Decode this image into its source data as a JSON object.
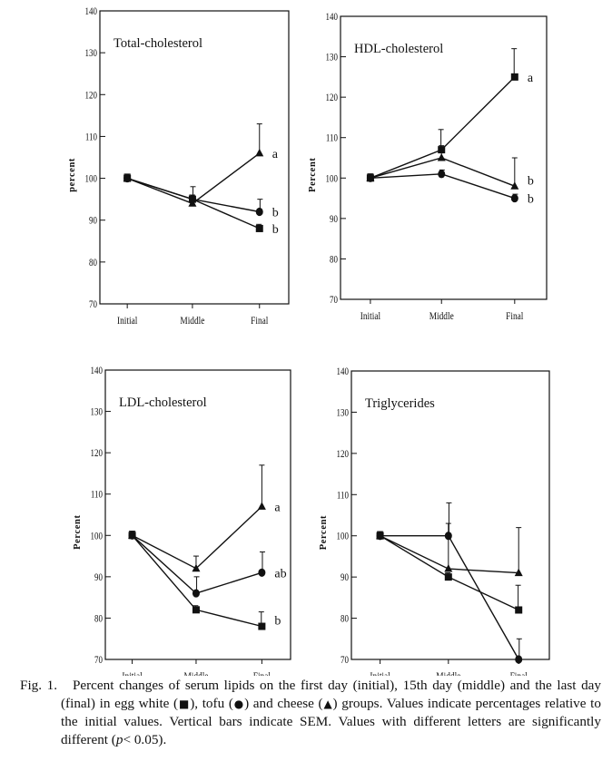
{
  "chart_data": [
    {
      "type": "line",
      "title": "Total-cholesterol",
      "ylabel": "percent",
      "xlabel": "",
      "categories": [
        "Initial",
        "Middle",
        "Final"
      ],
      "ylim": [
        70,
        140
      ],
      "yticks": [
        70,
        80,
        90,
        100,
        110,
        120,
        130,
        140
      ],
      "series": [
        {
          "marker": "square",
          "values": [
            100,
            95,
            88
          ],
          "sem": [
            1,
            1,
            1
          ]
        },
        {
          "marker": "circle",
          "values": [
            100,
            95,
            92
          ],
          "sem": [
            1,
            3,
            3
          ]
        },
        {
          "marker": "triangle",
          "values": [
            100,
            94,
            106
          ],
          "sem": [
            1,
            2,
            7
          ]
        }
      ],
      "significance": [
        {
          "value": 106,
          "label": "a"
        },
        {
          "value": 92,
          "label": "b"
        },
        {
          "value": 88,
          "label": "b"
        }
      ]
    },
    {
      "type": "line",
      "title": "HDL-cholesterol",
      "ylabel": "Percent",
      "xlabel": "",
      "categories": [
        "Initial",
        "Middle",
        "Final"
      ],
      "ylim": [
        70,
        140
      ],
      "yticks": [
        70,
        80,
        90,
        100,
        110,
        120,
        130,
        140
      ],
      "series": [
        {
          "marker": "square",
          "values": [
            100,
            107,
            125
          ],
          "sem": [
            1,
            5,
            7
          ]
        },
        {
          "marker": "circle",
          "values": [
            100,
            101,
            95
          ],
          "sem": [
            1,
            1,
            1
          ]
        },
        {
          "marker": "triangle",
          "values": [
            100,
            105,
            98
          ],
          "sem": [
            1,
            3,
            7
          ]
        }
      ],
      "significance": [
        {
          "value": 125,
          "label": "a"
        },
        {
          "value": 99.5,
          "label": "b"
        },
        {
          "value": 95,
          "label": "b"
        }
      ]
    },
    {
      "type": "line",
      "title": "LDL-cholesterol",
      "ylabel": "Percent",
      "xlabel": "",
      "categories": [
        "Initial",
        "Middle",
        "Final"
      ],
      "ylim": [
        70,
        140
      ],
      "yticks": [
        70,
        80,
        90,
        100,
        110,
        120,
        130,
        140
      ],
      "series": [
        {
          "marker": "square",
          "values": [
            100,
            82,
            78
          ],
          "sem": [
            1,
            1,
            3.5
          ]
        },
        {
          "marker": "circle",
          "values": [
            100,
            86,
            91
          ],
          "sem": [
            1,
            4,
            5
          ]
        },
        {
          "marker": "triangle",
          "values": [
            100,
            92,
            107
          ],
          "sem": [
            1,
            3,
            10
          ]
        }
      ],
      "significance": [
        {
          "value": 107,
          "label": "a"
        },
        {
          "value": 91,
          "label": "ab"
        },
        {
          "value": 79.5,
          "label": "b"
        }
      ]
    },
    {
      "type": "line",
      "title": "Triglycerides",
      "ylabel": "Percent",
      "xlabel": "",
      "categories": [
        "Initial",
        "Middle",
        "Final"
      ],
      "ylim": [
        70,
        140
      ],
      "yticks": [
        70,
        80,
        90,
        100,
        110,
        120,
        130,
        140
      ],
      "series": [
        {
          "marker": "square",
          "values": [
            100,
            90,
            82
          ],
          "sem": [
            1,
            1,
            6
          ]
        },
        {
          "marker": "circle",
          "values": [
            100,
            100,
            70
          ],
          "sem": [
            1,
            8,
            5
          ]
        },
        {
          "marker": "triangle",
          "values": [
            100,
            92,
            91
          ],
          "sem": [
            1,
            11,
            11
          ]
        }
      ],
      "significance": []
    }
  ],
  "caption": {
    "fig_label": "Fig. 1.",
    "part1": "Percent changes of serum lipids on the first day (initial), 15th day (middle) and the last day (final) in egg white (",
    "sym_egg": "■",
    "part2": "), tofu (",
    "sym_tofu": "●",
    "part3": ") and cheese (",
    "sym_cheese": "▲",
    "part4": ") groups. Values indicate percentages relative to the initial values. Vertical bars indicate SEM. Values with different letters are significantly different (",
    "p_symbol": "p",
    "part5": "< 0.05)."
  },
  "colors": {
    "ink": "#111111",
    "background": "#ffffff"
  }
}
